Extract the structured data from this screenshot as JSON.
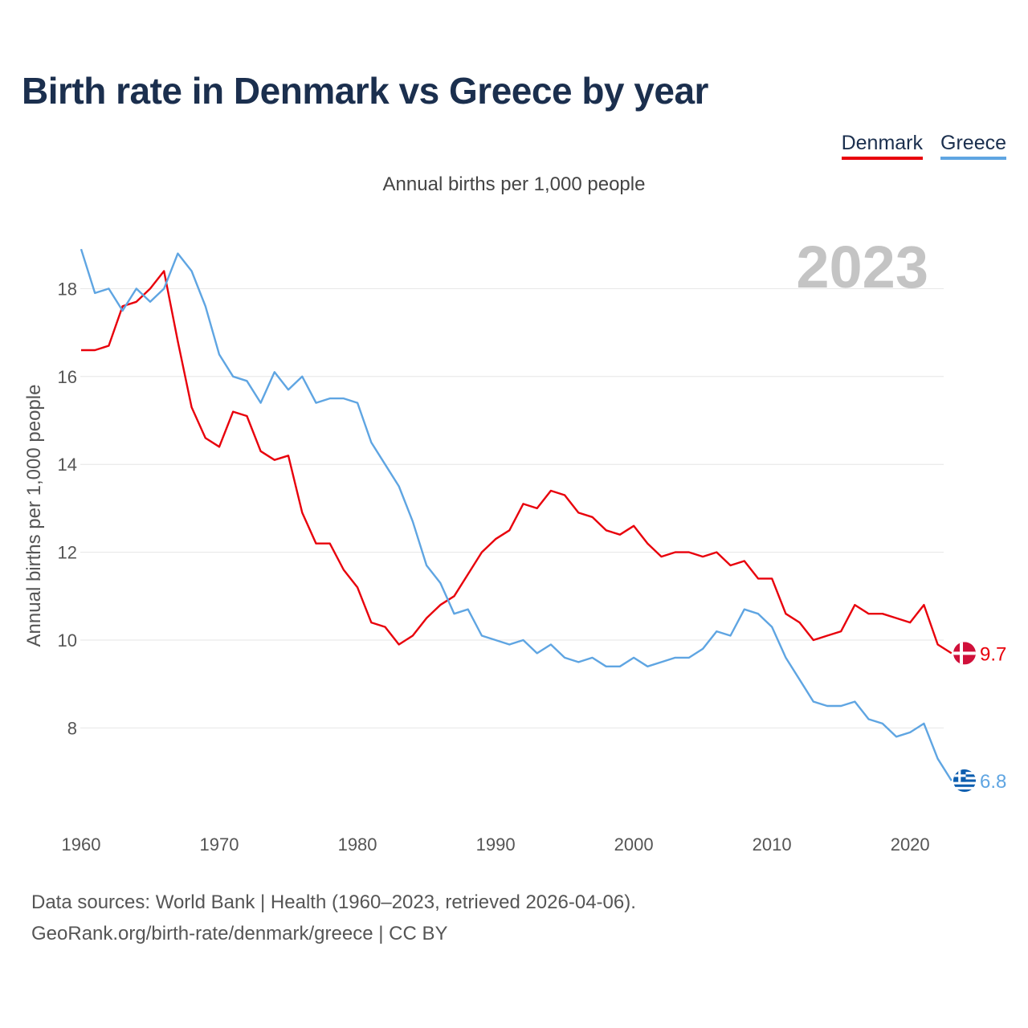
{
  "title": "Birth rate in Denmark vs Greece by year",
  "legend": [
    {
      "name": "Denmark",
      "color": "#e8000b"
    },
    {
      "name": "Greece",
      "color": "#5fa5e2"
    }
  ],
  "footer": {
    "line1": "Data sources: World Bank | Health (1960–2023, retrieved 2026-04-06).",
    "line2": "GeoRank.org/birth-rate/denmark/greece | CC BY"
  },
  "chart_data": {
    "type": "line",
    "title": "Birth rate in Denmark vs Greece by year",
    "subtitle": "Annual births per 1,000 people",
    "xlabel": "",
    "ylabel": "Annual births per 1,000 people",
    "year_label": "2023",
    "xlim": [
      1960,
      2024
    ],
    "ylim": [
      6,
      19
    ],
    "x_ticks": [
      1960,
      1970,
      1980,
      1990,
      2000,
      2010,
      2020
    ],
    "y_ticks": [
      8,
      10,
      12,
      14,
      16,
      18
    ],
    "grid": true,
    "legend_position": "top-right",
    "x": [
      1960,
      1961,
      1962,
      1963,
      1964,
      1965,
      1966,
      1967,
      1968,
      1969,
      1970,
      1971,
      1972,
      1973,
      1974,
      1975,
      1976,
      1977,
      1978,
      1979,
      1980,
      1981,
      1982,
      1983,
      1984,
      1985,
      1986,
      1987,
      1988,
      1989,
      1990,
      1991,
      1992,
      1993,
      1994,
      1995,
      1996,
      1997,
      1998,
      1999,
      2000,
      2001,
      2002,
      2003,
      2004,
      2005,
      2006,
      2007,
      2008,
      2009,
      2010,
      2011,
      2012,
      2013,
      2014,
      2015,
      2016,
      2017,
      2018,
      2019,
      2020,
      2021,
      2022,
      2023
    ],
    "series": [
      {
        "name": "Denmark",
        "color": "#e8000b",
        "end_label": "9.7",
        "values": [
          16.6,
          16.6,
          16.7,
          17.6,
          17.7,
          18.0,
          18.4,
          16.8,
          15.3,
          14.6,
          14.4,
          15.2,
          15.1,
          14.3,
          14.1,
          14.2,
          12.9,
          12.2,
          12.2,
          11.6,
          11.2,
          10.4,
          10.3,
          9.9,
          10.1,
          10.5,
          10.8,
          11.0,
          11.5,
          12.0,
          12.3,
          12.5,
          13.1,
          13.0,
          13.4,
          13.3,
          12.9,
          12.8,
          12.5,
          12.4,
          12.6,
          12.2,
          11.9,
          12.0,
          12.0,
          11.9,
          12.0,
          11.7,
          11.8,
          11.4,
          11.4,
          10.6,
          10.4,
          10.0,
          10.1,
          10.2,
          10.8,
          10.6,
          10.6,
          10.5,
          10.4,
          10.8,
          9.9,
          9.7
        ]
      },
      {
        "name": "Greece",
        "color": "#5fa5e2",
        "end_label": "6.8",
        "values": [
          18.9,
          17.9,
          18.0,
          17.5,
          18.0,
          17.7,
          18.0,
          18.8,
          18.4,
          17.6,
          16.5,
          16.0,
          15.9,
          15.4,
          16.1,
          15.7,
          16.0,
          15.4,
          15.5,
          15.5,
          15.4,
          14.5,
          14.0,
          13.5,
          12.7,
          11.7,
          11.3,
          10.6,
          10.7,
          10.1,
          10.0,
          9.9,
          10.0,
          9.7,
          9.9,
          9.6,
          9.5,
          9.6,
          9.4,
          9.4,
          9.6,
          9.4,
          9.5,
          9.6,
          9.6,
          9.8,
          10.2,
          10.1,
          10.7,
          10.6,
          10.3,
          9.6,
          9.1,
          8.6,
          8.5,
          8.5,
          8.6,
          8.2,
          8.1,
          7.8,
          7.9,
          8.1,
          7.3,
          6.8
        ]
      }
    ]
  }
}
